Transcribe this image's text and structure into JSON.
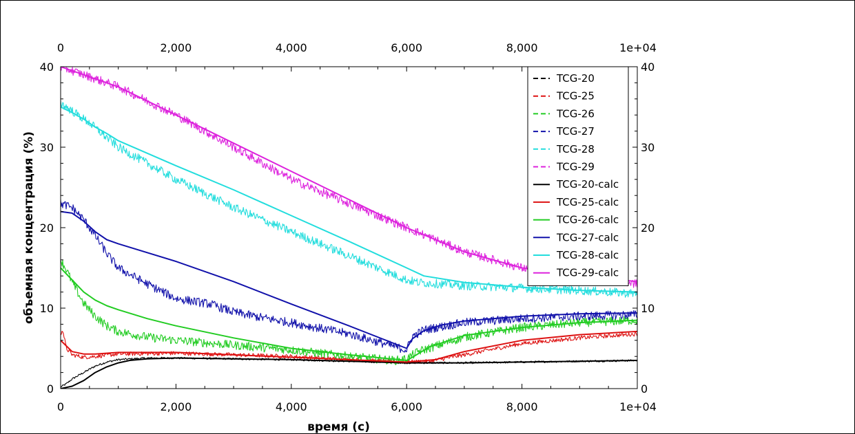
{
  "chart_data": {
    "type": "line",
    "title": "",
    "xlabel": "время (с)",
    "ylabel": "объемная концентрация (%)",
    "xlim": [
      0,
      10000
    ],
    "ylim": [
      0,
      40
    ],
    "x_ticks": [
      0,
      2000,
      4000,
      6000,
      8000,
      10000
    ],
    "x_tick_labels": [
      "0",
      "2,000",
      "4,000",
      "6,000",
      "8,000",
      "1e+04"
    ],
    "y_ticks": [
      0,
      10,
      20,
      30,
      40
    ],
    "y_tick_labels": [
      "0",
      "10",
      "20",
      "30",
      "40"
    ],
    "y2_tick_labels": [
      "0",
      "10",
      "20",
      "30",
      "40"
    ],
    "legend_position": "top-right",
    "grid": false,
    "series": [
      {
        "name": "TCG-20",
        "color": "#000000",
        "style": "dashed",
        "x": [
          0,
          100,
          200,
          400,
          600,
          800,
          1000,
          1500,
          2000,
          3000,
          4000,
          5000,
          6000,
          7000,
          8000,
          9000,
          10000
        ],
        "y": [
          0.2,
          0.6,
          1.2,
          2.0,
          2.8,
          3.3,
          3.6,
          3.8,
          3.8,
          3.7,
          3.6,
          3.4,
          3.2,
          3.2,
          3.3,
          3.4,
          3.5
        ]
      },
      {
        "name": "TCG-25",
        "color": "#dd1111",
        "style": "dashed",
        "x": [
          0,
          30,
          100,
          200,
          400,
          600,
          1000,
          2000,
          3000,
          4000,
          5000,
          6000,
          6400,
          7000,
          8000,
          9000,
          10000
        ],
        "y": [
          6.5,
          7.5,
          5.0,
          4.2,
          3.9,
          4.0,
          4.3,
          4.4,
          4.2,
          4.0,
          3.6,
          3.3,
          3.4,
          4.2,
          5.6,
          6.3,
          6.8
        ]
      },
      {
        "name": "TCG-26",
        "color": "#22cc22",
        "style": "dashed",
        "x": [
          0,
          100,
          200,
          400,
          600,
          800,
          1000,
          1500,
          2000,
          3000,
          4000,
          5000,
          5800,
          6000,
          6200,
          7000,
          8000,
          9000,
          10000
        ],
        "y": [
          16.0,
          14.8,
          13.2,
          10.6,
          9.0,
          7.8,
          7.1,
          6.4,
          6.0,
          5.4,
          4.8,
          4.0,
          3.5,
          3.7,
          4.6,
          6.4,
          7.6,
          8.2,
          8.5
        ]
      },
      {
        "name": "TCG-27",
        "color": "#1111aa",
        "style": "dashed",
        "x": [
          0,
          200,
          400,
          600,
          800,
          1000,
          1500,
          2000,
          2600,
          3000,
          3500,
          4000,
          4500,
          5000,
          5500,
          6000,
          6100,
          6300,
          7000,
          8000,
          9000,
          10000
        ],
        "y": [
          23.0,
          22.5,
          21.0,
          19.0,
          16.8,
          15.0,
          13.0,
          11.2,
          10.5,
          9.5,
          8.8,
          8.2,
          7.5,
          6.8,
          5.8,
          4.8,
          6.5,
          7.3,
          8.2,
          8.7,
          9.0,
          9.2
        ]
      },
      {
        "name": "TCG-28",
        "color": "#22dddd",
        "style": "dashed",
        "x": [
          0,
          500,
          1000,
          1500,
          2000,
          3000,
          4000,
          5000,
          6000,
          6200,
          7000,
          8000,
          9000,
          10000
        ],
        "y": [
          35.5,
          33.0,
          30.0,
          28.0,
          26.0,
          22.5,
          19.5,
          16.5,
          13.5,
          13.2,
          12.8,
          12.5,
          12.2,
          11.8
        ]
      },
      {
        "name": "TCG-29",
        "color": "#dd22dd",
        "style": "dashed",
        "x": [
          0,
          1000,
          2000,
          3000,
          4000,
          5000,
          6000,
          7000,
          8000,
          9000,
          10000
        ],
        "y": [
          40.0,
          37.5,
          34.0,
          30.0,
          26.0,
          23.0,
          20.0,
          17.0,
          15.0,
          14.0,
          13.0
        ]
      },
      {
        "name": "TCG-20-calc",
        "color": "#000000",
        "style": "solid",
        "x": [
          0,
          200,
          400,
          600,
          800,
          1000,
          1200,
          1500,
          2000,
          3000,
          4000,
          5000,
          6000,
          7000,
          8000,
          9000,
          10000
        ],
        "y": [
          0.0,
          0.3,
          1.0,
          2.0,
          2.7,
          3.2,
          3.5,
          3.7,
          3.8,
          3.7,
          3.6,
          3.4,
          3.2,
          3.2,
          3.3,
          3.4,
          3.5
        ]
      },
      {
        "name": "TCG-25-calc",
        "color": "#dd1111",
        "style": "solid",
        "x": [
          0,
          200,
          400,
          600,
          1000,
          2000,
          3000,
          4000,
          5000,
          6000,
          6500,
          7000,
          8000,
          9000,
          10000
        ],
        "y": [
          6.0,
          4.6,
          4.3,
          4.3,
          4.5,
          4.5,
          4.2,
          3.9,
          3.6,
          3.3,
          3.6,
          4.6,
          6.0,
          6.7,
          7.1
        ]
      },
      {
        "name": "TCG-26-calc",
        "color": "#22cc22",
        "style": "solid",
        "x": [
          0,
          200,
          400,
          600,
          800,
          1000,
          1500,
          2000,
          3000,
          4000,
          5000,
          6000,
          6100,
          6400,
          7000,
          8000,
          9000,
          10000
        ],
        "y": [
          15.0,
          13.5,
          12.0,
          11.0,
          10.3,
          9.8,
          8.7,
          7.8,
          6.3,
          5.0,
          4.2,
          3.5,
          3.9,
          5.2,
          6.6,
          7.6,
          8.2,
          8.5
        ]
      },
      {
        "name": "TCG-27-calc",
        "color": "#1111aa",
        "style": "solid",
        "x": [
          0,
          200,
          400,
          600,
          800,
          1000,
          2000,
          3000,
          4000,
          5000,
          6000,
          6100,
          6300,
          6600,
          7000,
          8000,
          9000,
          10000
        ],
        "y": [
          22.0,
          21.8,
          20.8,
          19.5,
          18.5,
          18.0,
          15.8,
          13.3,
          10.5,
          7.8,
          5.0,
          6.2,
          7.2,
          7.9,
          8.4,
          9.0,
          9.3,
          9.4
        ]
      },
      {
        "name": "TCG-28-calc",
        "color": "#22dddd",
        "style": "solid",
        "x": [
          0,
          200,
          400,
          600,
          800,
          1000,
          2000,
          3000,
          4000,
          5000,
          6000,
          6300,
          7000,
          8000,
          9000,
          10000
        ],
        "y": [
          35.0,
          34.3,
          33.5,
          32.5,
          31.7,
          30.8,
          27.7,
          24.7,
          21.5,
          18.3,
          15.0,
          14.0,
          13.2,
          12.6,
          12.2,
          12.0
        ]
      },
      {
        "name": "TCG-29-calc",
        "color": "#dd22dd",
        "style": "solid",
        "x": [
          0,
          1000,
          2000,
          3000,
          4000,
          5000,
          6000,
          7000,
          8000,
          9000,
          10000
        ],
        "y": [
          40.0,
          37.5,
          34.0,
          30.5,
          27.0,
          23.5,
          20.0,
          17.0,
          15.0,
          14.0,
          13.3
        ]
      }
    ]
  }
}
